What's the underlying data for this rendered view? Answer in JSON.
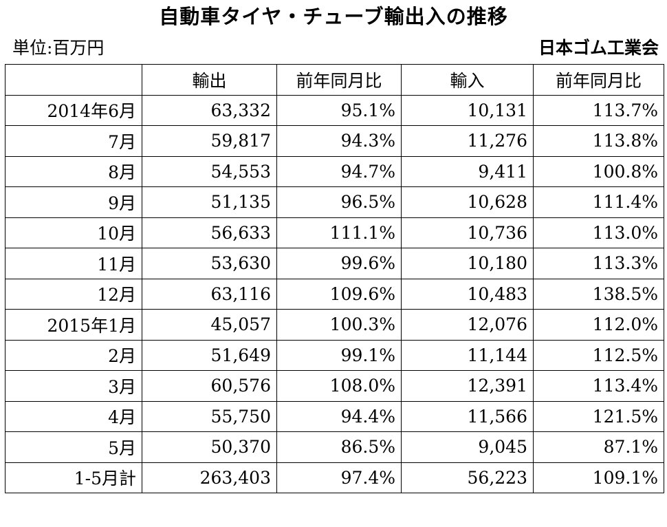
{
  "title": "自動車タイヤ・チューブ輸出入の推移",
  "unit": "単位:百万円",
  "organization": "日本ゴム工業会",
  "headers": [
    "",
    "輸出",
    "前年同月比",
    "輸入",
    "前年同月比"
  ],
  "rows": [
    {
      "period": "2014年6月",
      "export": "63,332",
      "export_yoy": "95.1%",
      "import": "10,131",
      "import_yoy": "113.7%"
    },
    {
      "period": "7月",
      "export": "59,817",
      "export_yoy": "94.3%",
      "import": "11,276",
      "import_yoy": "113.8%"
    },
    {
      "period": "8月",
      "export": "54,553",
      "export_yoy": "94.7%",
      "import": "9,411",
      "import_yoy": "100.8%"
    },
    {
      "period": "9月",
      "export": "51,135",
      "export_yoy": "96.5%",
      "import": "10,628",
      "import_yoy": "111.4%"
    },
    {
      "period": "10月",
      "export": "56,633",
      "export_yoy": "111.1%",
      "import": "10,736",
      "import_yoy": "113.0%"
    },
    {
      "period": "11月",
      "export": "53,630",
      "export_yoy": "99.6%",
      "import": "10,180",
      "import_yoy": "113.3%"
    },
    {
      "period": "12月",
      "export": "63,116",
      "export_yoy": "109.6%",
      "import": "10,483",
      "import_yoy": "138.5%"
    },
    {
      "period": "2015年1月",
      "export": "45,057",
      "export_yoy": "100.3%",
      "import": "12,076",
      "import_yoy": "112.0%"
    },
    {
      "period": "2月",
      "export": "51,649",
      "export_yoy": "99.1%",
      "import": "11,144",
      "import_yoy": "112.5%"
    },
    {
      "period": "3月",
      "export": "60,576",
      "export_yoy": "108.0%",
      "import": "12,391",
      "import_yoy": "113.4%"
    },
    {
      "period": "4月",
      "export": "55,750",
      "export_yoy": "94.4%",
      "import": "11,566",
      "import_yoy": "121.5%"
    },
    {
      "period": "5月",
      "export": "50,370",
      "export_yoy": "86.5%",
      "import": "9,045",
      "import_yoy": "87.1%"
    },
    {
      "period": "1-5月計",
      "export": "263,403",
      "export_yoy": "97.4%",
      "import": "56,223",
      "import_yoy": "109.1%"
    }
  ]
}
